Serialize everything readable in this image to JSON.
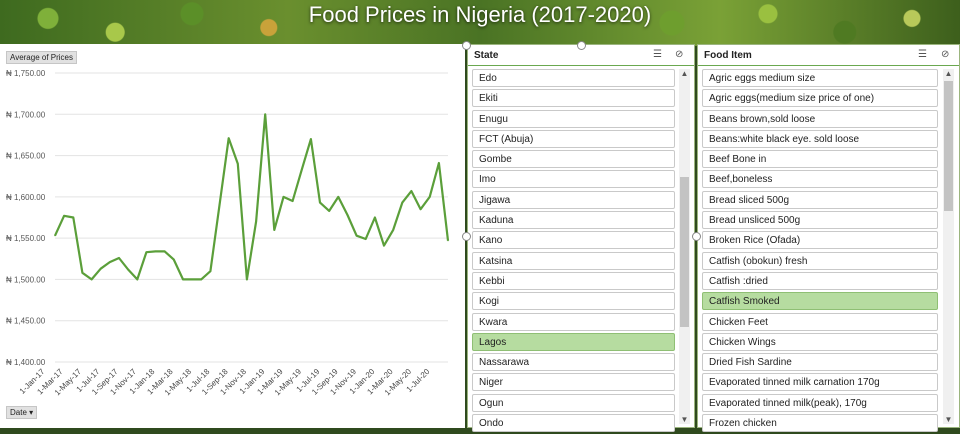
{
  "title": "Food Prices in Nigeria (2017-2020)",
  "chart_buttons": {
    "value_field": "Average of Prices",
    "axis_field": "Date"
  },
  "chart_data": {
    "type": "line",
    "ylim": [
      1400,
      1750
    ],
    "yticks": [
      "₦ 1,400.00",
      "₦ 1,450.00",
      "₦ 1,500.00",
      "₦ 1,550.00",
      "₦ 1,600.00",
      "₦ 1,650.00",
      "₦ 1,700.00",
      "₦ 1,750.00"
    ],
    "ytick_values": [
      1400,
      1450,
      1500,
      1550,
      1600,
      1650,
      1700,
      1750
    ],
    "xtick_labels": [
      "1-Jan-17",
      "1-Mar-17",
      "1-May-17",
      "1-Jul-17",
      "1-Sep-17",
      "1-Nov-17",
      "1-Jan-18",
      "1-Mar-18",
      "1-May-18",
      "1-Jul-18",
      "1-Sep-18",
      "1-Nov-18",
      "1-Jan-19",
      "1-Mar-19",
      "1-May-19",
      "1-Jul-19",
      "1-Sep-19",
      "1-Nov-19",
      "1-Jan-20",
      "1-Mar-20",
      "1-May-20",
      "1-Jul-20"
    ],
    "grid": true,
    "color": "#5b9f3a",
    "values": [
      1553,
      1577,
      1575,
      1508,
      1500,
      1513,
      1521,
      1526,
      1512,
      1500,
      1533,
      1534,
      1534,
      1524,
      1500,
      1500,
      1500,
      1510,
      1590,
      1671,
      1640,
      1500,
      1570,
      1700,
      1560,
      1600,
      1595,
      1633,
      1670,
      1593,
      1583,
      1600,
      1578,
      1553,
      1549,
      1575,
      1541,
      1560,
      1593,
      1607,
      1585,
      1600,
      1641,
      1547
    ]
  },
  "state_slicer": {
    "title": "State",
    "items": [
      "Edo",
      "Ekiti",
      "Enugu",
      "FCT (Abuja)",
      "Gombe",
      "Imo",
      "Jigawa",
      "Kaduna",
      "Kano",
      "Katsina",
      "Kebbi",
      "Kogi",
      "Kwara",
      "Lagos",
      "Nassarawa",
      "Niger",
      "Ogun",
      "Ondo"
    ],
    "selected": "Lagos",
    "multi_select_icon": "multi-select-icon",
    "clear_filter_icon": "clear-filter-icon"
  },
  "food_slicer": {
    "title": "Food Item",
    "items": [
      "Agric eggs medium size",
      "Agric eggs(medium size price of one)",
      "Beans brown,sold loose",
      "Beans:white black eye. sold loose",
      "Beef Bone in",
      "Beef,boneless",
      "Bread sliced 500g",
      "Bread unsliced 500g",
      "Broken Rice (Ofada)",
      "Catfish (obokun) fresh",
      "Catfish :dried",
      "Catfish Smoked",
      "Chicken Feet",
      "Chicken Wings",
      "Dried Fish Sardine",
      "Evaporated tinned milk carnation 170g",
      "Evaporated tinned milk(peak), 170g",
      "Frozen chicken"
    ],
    "selected": "Catfish Smoked",
    "multi_select_icon": "multi-select-icon",
    "clear_filter_icon": "clear-filter-icon"
  }
}
